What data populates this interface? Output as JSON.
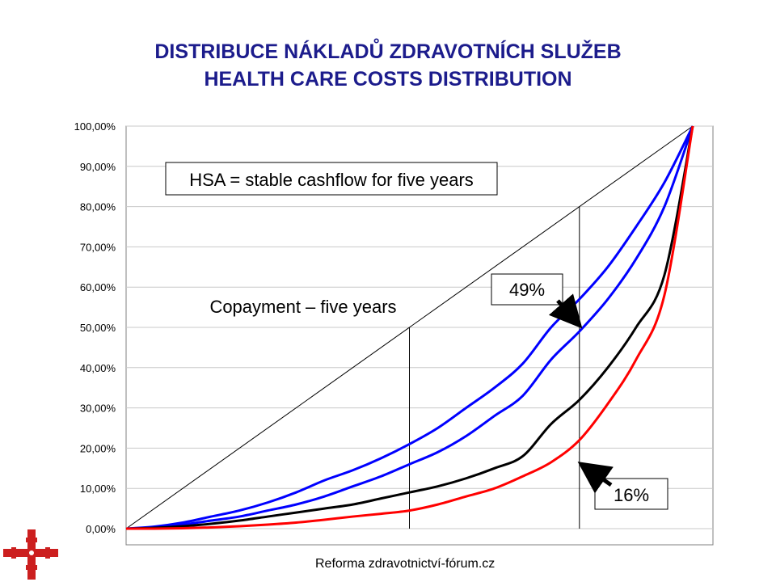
{
  "title": "DISTRIBUCE NÁKLADŮ ZDRAVOTNÍCH SLUŽEB",
  "subtitle": "HEALTH CARE COSTS DISTRIBUTION",
  "footer": "Reforma zdravotnictví-fórum.cz",
  "chart_data": {
    "type": "line",
    "x": [
      0,
      0.05,
      0.1,
      0.15,
      0.2,
      0.25,
      0.3,
      0.35,
      0.4,
      0.45,
      0.5,
      0.55,
      0.6,
      0.65,
      0.7,
      0.75,
      0.8,
      0.85,
      0.9,
      0.95,
      1.0
    ],
    "xlim": [
      0,
      1
    ],
    "ylim": [
      0,
      100
    ],
    "y_ticks": [
      "0,00%",
      "10,00%",
      "20,00%",
      "30,00%",
      "40,00%",
      "50,00%",
      "60,00%",
      "70,00%",
      "80,00%",
      "90,00%",
      "100,00%"
    ],
    "grid": true,
    "series": [
      {
        "color": "#0000ff",
        "values": [
          0,
          0.5,
          1.5,
          3,
          4.5,
          6.5,
          9,
          12,
          14.5,
          17.5,
          21,
          25,
          30,
          35,
          41,
          50,
          57,
          65,
          75,
          86,
          100
        ]
      },
      {
        "color": "#0000ff",
        "values": [
          0,
          0.3,
          1,
          2,
          3,
          4.5,
          6,
          8,
          10.5,
          13,
          16,
          19,
          23,
          28,
          33,
          42,
          49,
          57,
          67,
          80,
          100
        ]
      },
      {
        "color": "#000000",
        "values": [
          0,
          0.2,
          0.6,
          1.2,
          2,
          3,
          4,
          5,
          6,
          7.5,
          9,
          10.5,
          12.5,
          15,
          18,
          26,
          32,
          40,
          50,
          63,
          100
        ]
      },
      {
        "color": "#ff0000",
        "values": [
          0,
          0,
          0.1,
          0.3,
          0.6,
          1,
          1.5,
          2.2,
          3,
          3.7,
          4.5,
          6,
          8,
          10,
          13,
          16.5,
          22,
          31,
          42,
          58,
          100
        ]
      }
    ],
    "diagonal": {
      "color": "#000000"
    },
    "vertical_markers": [
      {
        "x": 0.5,
        "y_top": 50
      },
      {
        "x": 0.8,
        "y_top": 80
      }
    ],
    "annotations": {
      "hsa": "HSA = stable cashflow for five years",
      "copayment": "Copayment – five years",
      "pct49": "49%",
      "pct16": "16%"
    },
    "arrows": [
      {
        "label": "49%",
        "x": 0.8,
        "y": 50
      },
      {
        "label": "16%",
        "x": 0.8,
        "y": 16.5
      }
    ]
  }
}
